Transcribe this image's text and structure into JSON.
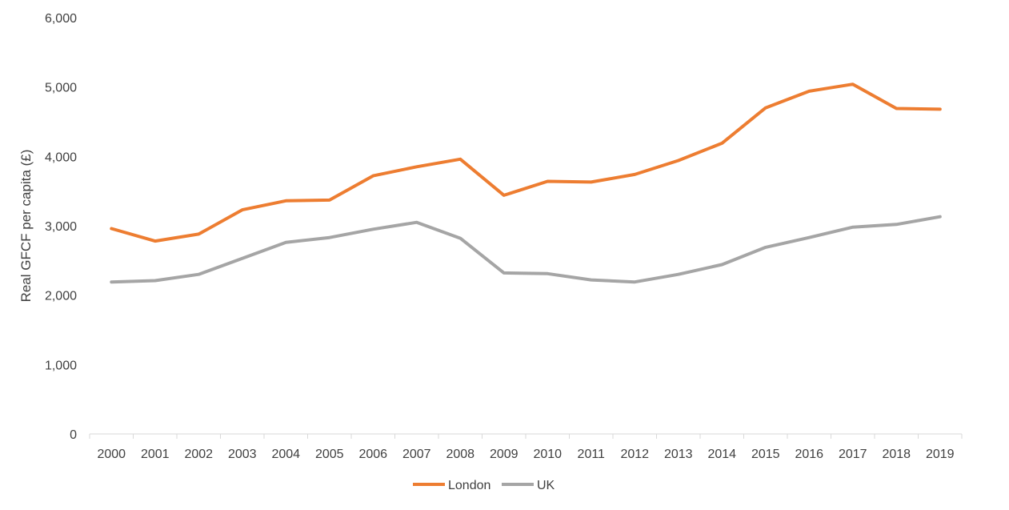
{
  "chart_data": {
    "type": "line",
    "title": "",
    "xlabel": "",
    "ylabel": "Real GFCF per capita (£)",
    "ylim": [
      0,
      6000
    ],
    "yticks": [
      "0",
      "1,000",
      "2,000",
      "3,000",
      "4,000",
      "5,000",
      "6,000"
    ],
    "ytick_values": [
      0,
      1000,
      2000,
      3000,
      4000,
      5000,
      6000
    ],
    "grid": false,
    "legend_position": "bottom",
    "categories": [
      "2000",
      "2001",
      "2002",
      "2003",
      "2004",
      "2005",
      "2006",
      "2007",
      "2008",
      "2009",
      "2010",
      "2011",
      "2012",
      "2013",
      "2014",
      "2015",
      "2016",
      "2017",
      "2018",
      "2019"
    ],
    "series": [
      {
        "name": "London",
        "color": "#ED7D31",
        "values": [
          2960,
          2780,
          2880,
          3230,
          3360,
          3370,
          3720,
          3850,
          3960,
          3440,
          3640,
          3630,
          3740,
          3940,
          4190,
          4700,
          4940,
          5040,
          4690,
          4680
        ]
      },
      {
        "name": "UK",
        "color": "#A5A5A5",
        "values": [
          2190,
          2210,
          2300,
          2530,
          2760,
          2830,
          2950,
          3050,
          2820,
          2320,
          2310,
          2220,
          2190,
          2300,
          2440,
          2690,
          2830,
          2980,
          3020,
          3130
        ]
      }
    ]
  }
}
